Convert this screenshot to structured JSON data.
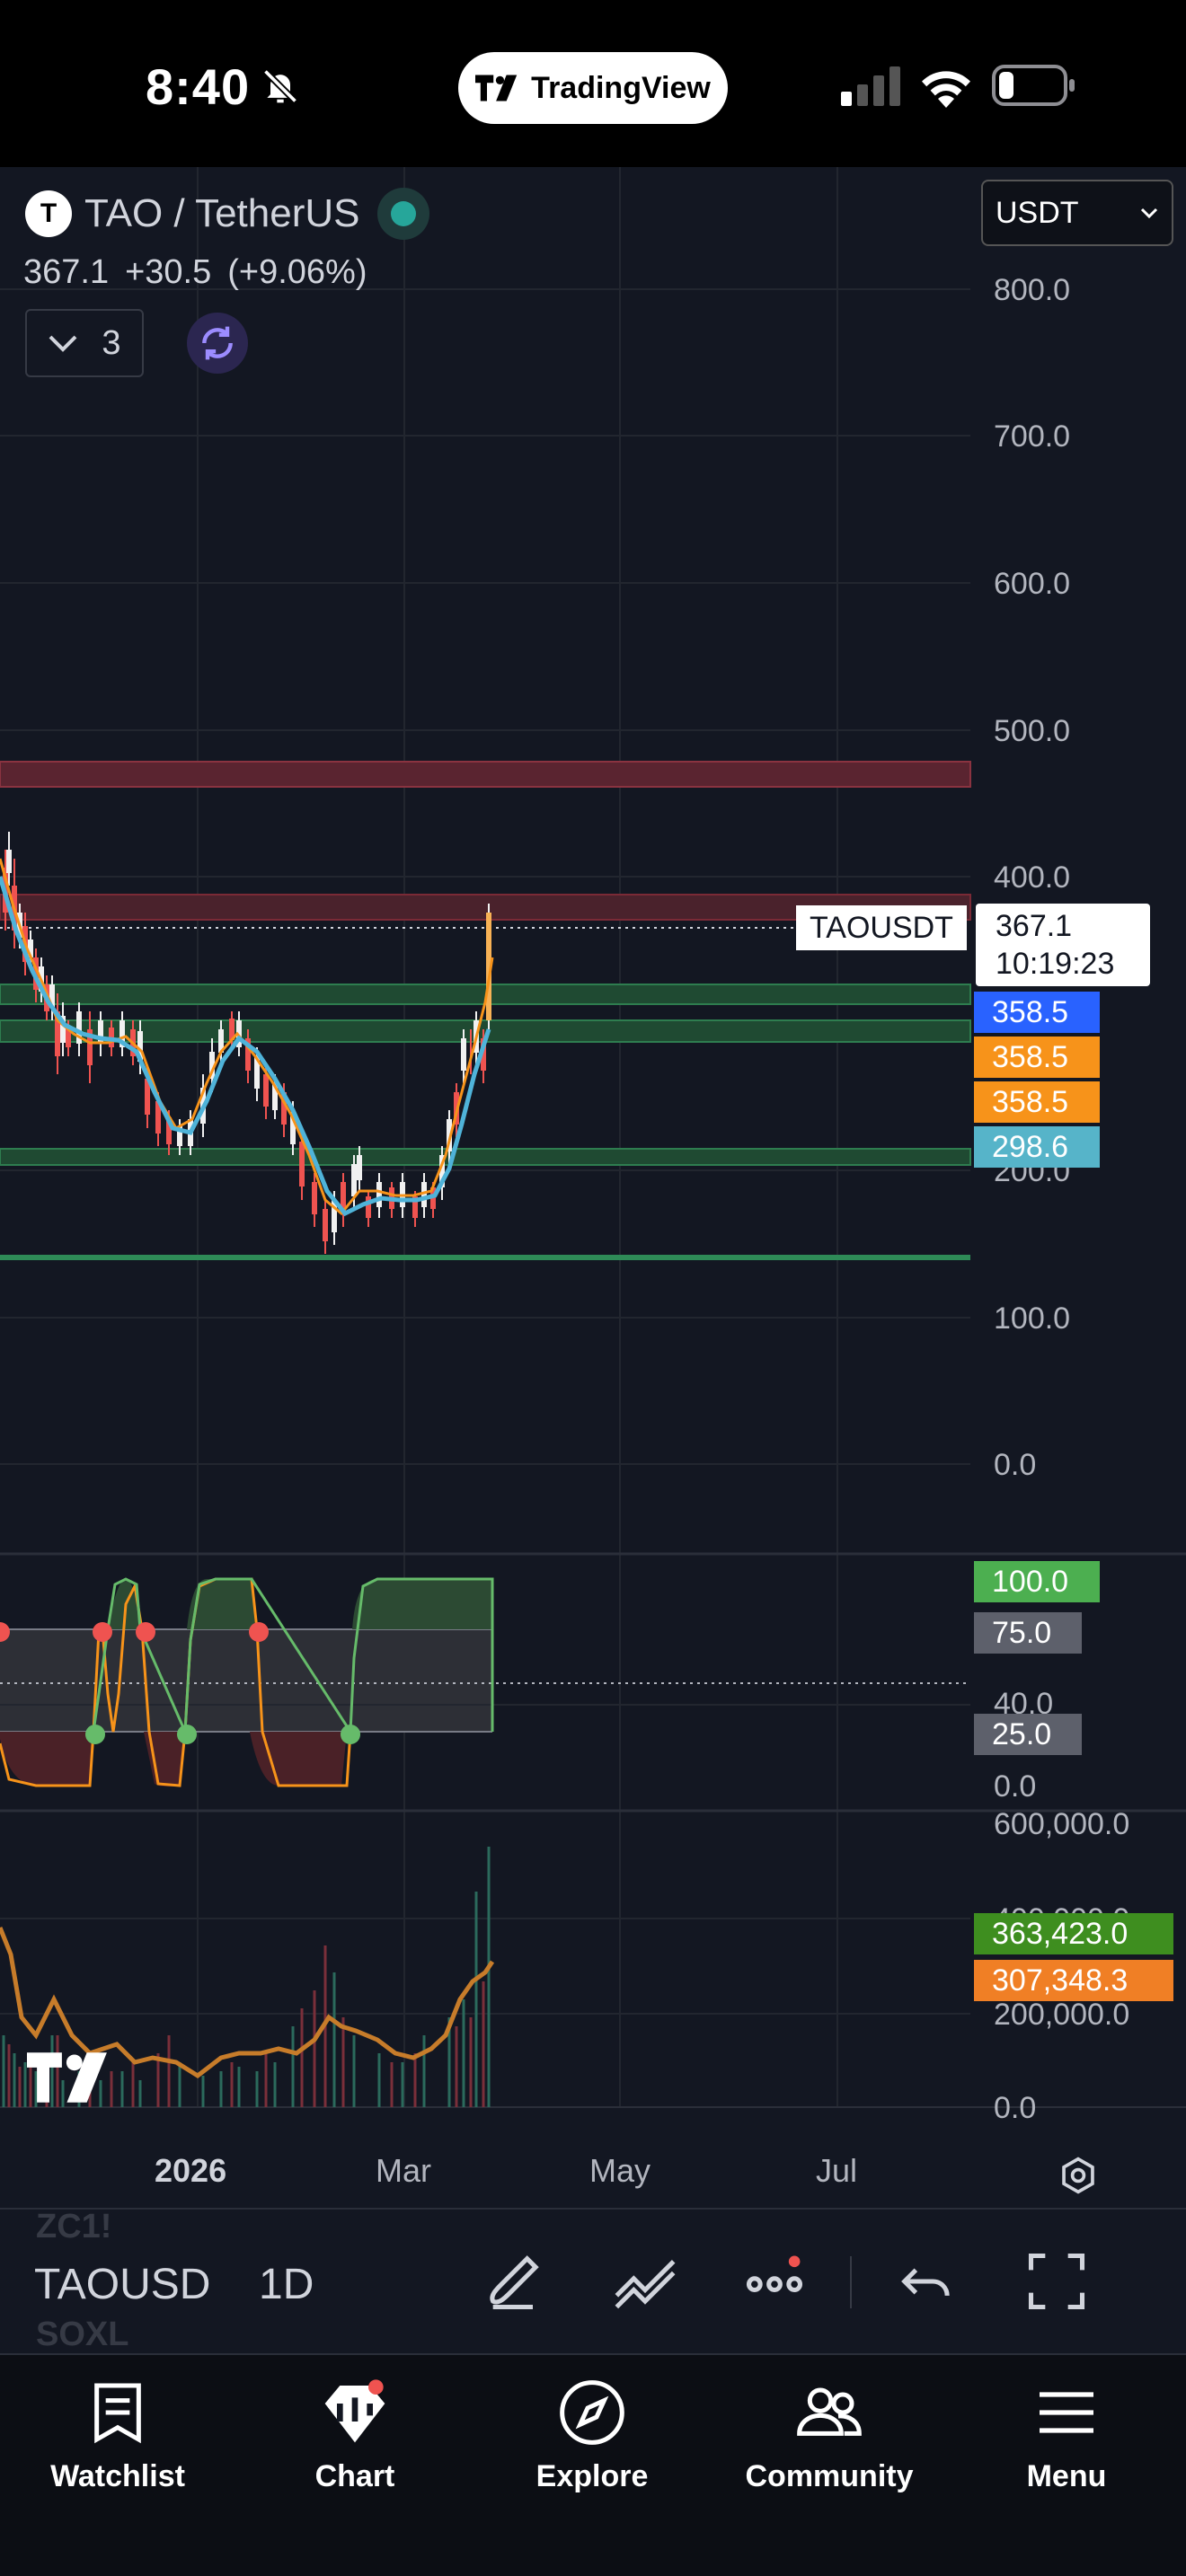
{
  "status_bar": {
    "time": "8:40",
    "app_pill": "TradingView"
  },
  "symbol": {
    "name": "TAO / TetherUS",
    "logo_letter": "T",
    "last": "367.1",
    "change": "+30.5",
    "change_pct": "(+9.06%)",
    "indicator_count": "3",
    "currency": "USDT",
    "ticker": "TAOUSDT",
    "countdown": "10:19:23"
  },
  "price_axis": [
    "800.0",
    "700.0",
    "600.0",
    "500.0",
    "400.0",
    "200.0",
    "100.0",
    "0.0"
  ],
  "price_tags": [
    {
      "value": "358.5",
      "color": "#2962ff"
    },
    {
      "value": "358.5",
      "color": "#f7931a"
    },
    {
      "value": "358.5",
      "color": "#f7931a"
    },
    {
      "value": "298.6",
      "color": "#56b4c9"
    }
  ],
  "oscillator_axis": [
    "100.0",
    "75.0",
    "40.0",
    "25.0",
    "0.0"
  ],
  "volume_axis": [
    "600,000.0",
    "400,000.0",
    "200,000.0",
    "0.0"
  ],
  "volume_tags": [
    {
      "value": "363,423.0",
      "color": "#3e8e1f"
    },
    {
      "value": "307,348.3",
      "color": "#f07f25"
    }
  ],
  "time_axis": [
    "2026",
    "Mar",
    "May",
    "Jul"
  ],
  "toolbar": {
    "symbol": "TAOUSD",
    "interval": "1D",
    "ghost_top": "ZC1!",
    "ghost_bottom": "SOXL"
  },
  "tabs": [
    "Watchlist",
    "Chart",
    "Explore",
    "Community",
    "Menu"
  ],
  "colors": {
    "background": "#131722",
    "up": "#ffffff",
    "down": "#ef5350",
    "ma": "#4fb3d9",
    "support": "#2e7d4f",
    "resistance": "#7a2a36"
  },
  "chart_data": {
    "type": "line",
    "series": [],
    "ylim": [
      0,
      850
    ],
    "x": [
      "2026",
      "Mar",
      "May",
      "Jul"
    ],
    "grid": true
  }
}
